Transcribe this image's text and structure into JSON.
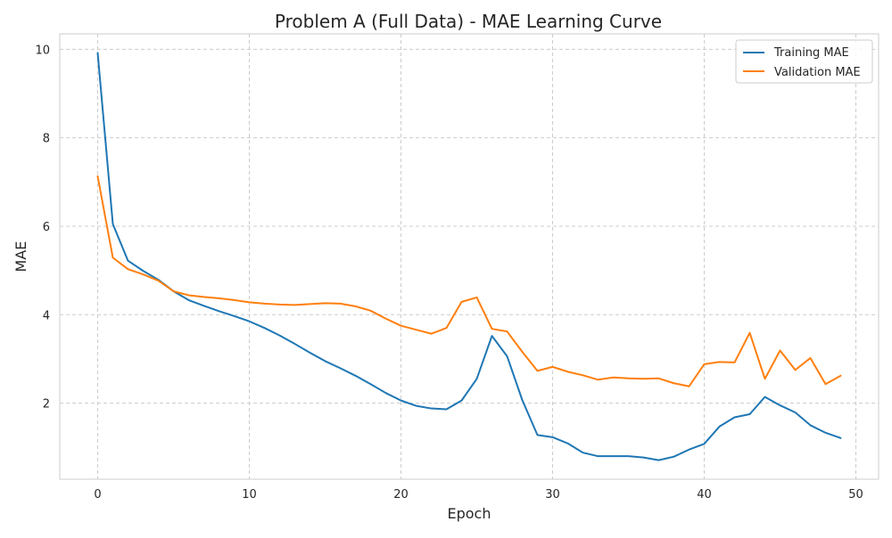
{
  "chart_data": {
    "type": "line",
    "title": "Problem A (Full Data) - MAE Learning Curve",
    "xlabel": "Epoch",
    "ylabel": "MAE",
    "xlim": [
      -2.5,
      51.5
    ],
    "ylim": [
      0.28,
      10.35
    ],
    "xticks": [
      0,
      10,
      20,
      30,
      40,
      50
    ],
    "yticks": [
      2,
      4,
      6,
      8,
      10
    ],
    "grid": true,
    "legend_position": "top-right",
    "x": [
      0,
      1,
      2,
      3,
      4,
      5,
      6,
      7,
      8,
      9,
      10,
      11,
      12,
      13,
      14,
      15,
      16,
      17,
      18,
      19,
      20,
      21,
      22,
      23,
      24,
      25,
      26,
      27,
      28,
      29,
      30,
      31,
      32,
      33,
      34,
      35,
      36,
      37,
      38,
      39,
      40,
      41,
      42,
      43,
      44,
      45,
      46,
      47,
      48,
      49
    ],
    "series": [
      {
        "name": "Training MAE",
        "color": "#1f77b4",
        "values": [
          9.92,
          6.05,
          5.22,
          4.99,
          4.79,
          4.53,
          4.33,
          4.2,
          4.08,
          3.97,
          3.85,
          3.7,
          3.53,
          3.34,
          3.14,
          2.95,
          2.79,
          2.62,
          2.43,
          2.23,
          2.06,
          1.94,
          1.88,
          1.86,
          2.06,
          2.55,
          3.52,
          3.06,
          2.07,
          1.28,
          1.23,
          1.09,
          0.88,
          0.8,
          0.8,
          0.8,
          0.77,
          0.71,
          0.79,
          0.95,
          1.08,
          1.47,
          1.68,
          1.75,
          2.14,
          1.95,
          1.79,
          1.5,
          1.33,
          1.21
        ]
      },
      {
        "name": "Validation MAE",
        "color": "#ff7f0e",
        "values": [
          7.13,
          5.29,
          5.03,
          4.91,
          4.77,
          4.53,
          4.44,
          4.4,
          4.37,
          4.33,
          4.28,
          4.25,
          4.23,
          4.22,
          4.24,
          4.26,
          4.25,
          4.19,
          4.09,
          3.91,
          3.75,
          3.66,
          3.57,
          3.7,
          4.29,
          4.39,
          3.68,
          3.62,
          3.16,
          2.73,
          2.82,
          2.71,
          2.63,
          2.53,
          2.58,
          2.56,
          2.55,
          2.56,
          2.45,
          2.38,
          2.88,
          2.93,
          2.92,
          3.59,
          2.55,
          3.19,
          2.75,
          3.02,
          2.43,
          2.62
        ]
      }
    ]
  }
}
